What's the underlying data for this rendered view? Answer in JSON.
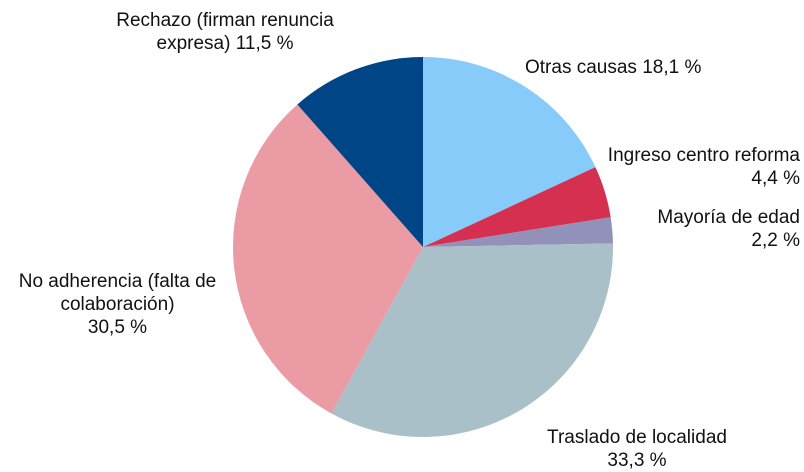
{
  "chart_data": {
    "type": "pie",
    "categories": [
      "Otras causas",
      "Ingreso centro reforma",
      "Mayoría de edad",
      "Traslado de localidad",
      "No adherencia (falta de colaboración)",
      "Rechazo (firman renuncia expresa)"
    ],
    "values": [
      18.1,
      4.4,
      2.2,
      33.3,
      30.5,
      11.5
    ],
    "value_labels": [
      "18,1 %",
      "4,4 %",
      "2,2 %",
      "33,3 %",
      "30,5 %",
      "11,5 %"
    ],
    "colors": [
      "#87cbfa",
      "#d63050",
      "#9191b9",
      "#aac0c8",
      "#ea9ba3",
      "#004586"
    ]
  }
}
